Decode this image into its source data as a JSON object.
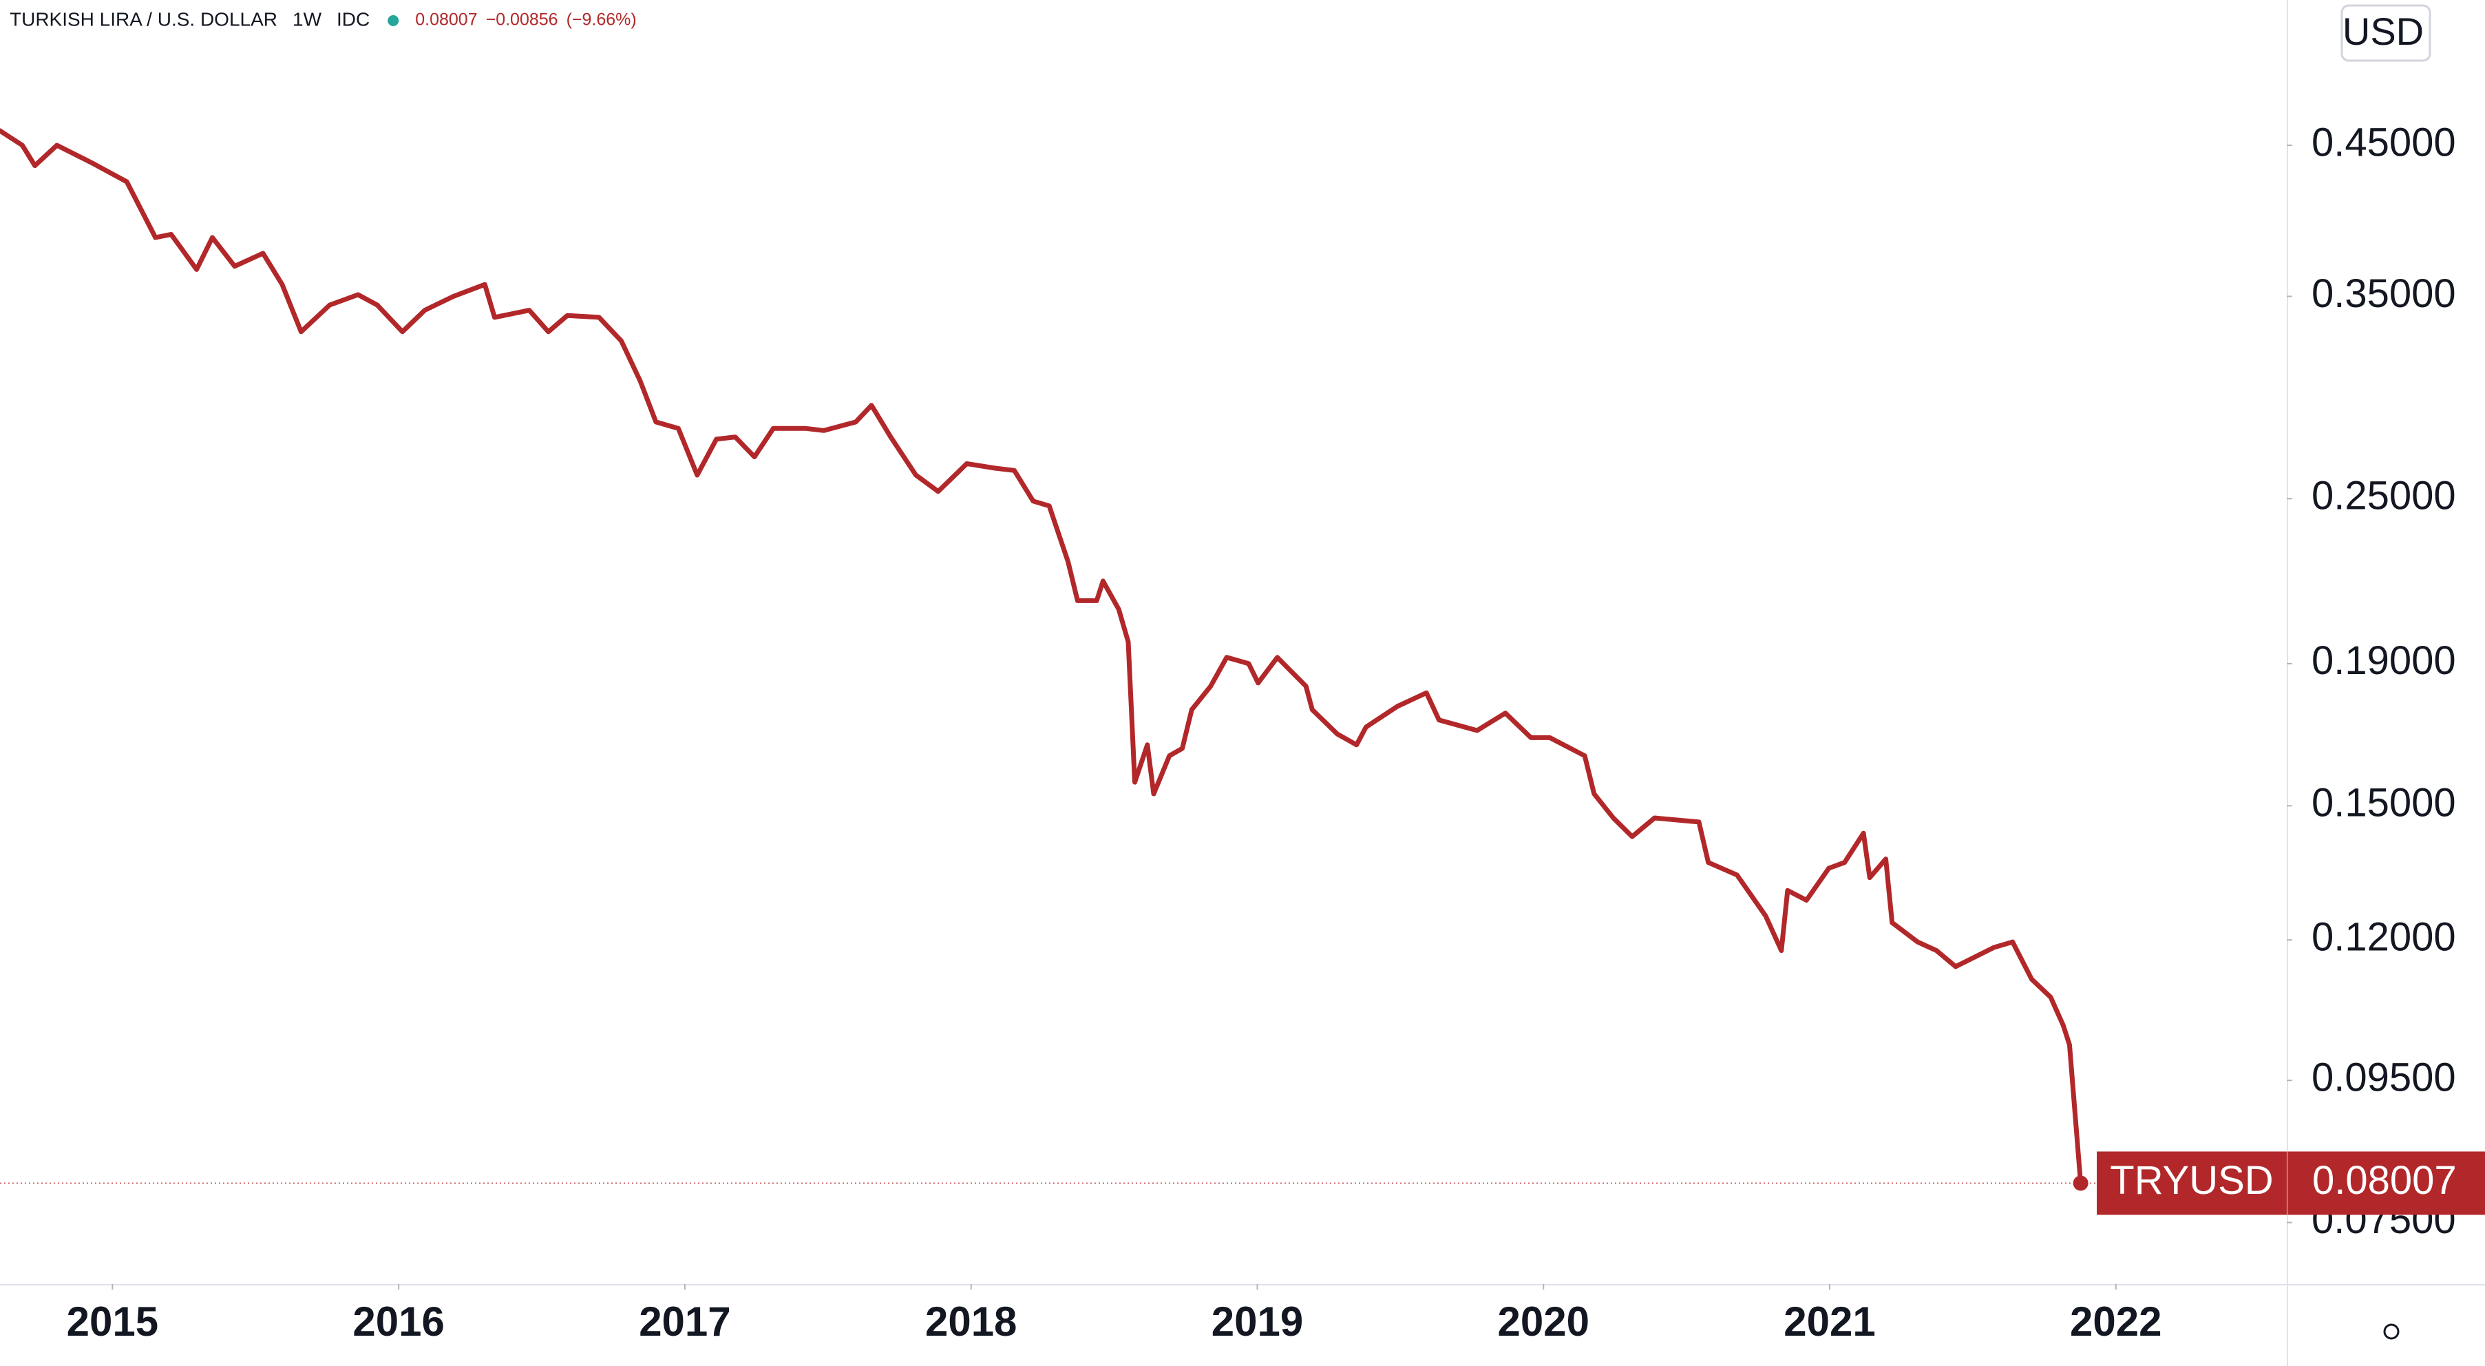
{
  "chart_data": {
    "type": "line",
    "title": "TURKISH LIRA / U.S. DOLLAR",
    "interval": "1W",
    "source": "IDC",
    "change": "−0.00856",
    "change_percent": "(−9.66%)",
    "currency": "USD",
    "log_scale": true,
    "series": [
      {
        "name": "TRYUSD",
        "color": "#b2282a",
        "x": [
          2014.607,
          2014.685,
          2014.729,
          2014.806,
          2014.928,
          2015.05,
          2015.15,
          2015.205,
          2015.294,
          2015.349,
          2015.427,
          2015.526,
          2015.593,
          2015.659,
          2015.759,
          2015.858,
          2015.925,
          2016.013,
          2016.091,
          2016.191,
          2016.301,
          2016.335,
          2016.456,
          2016.523,
          2016.589,
          2016.7,
          2016.778,
          2016.844,
          2016.899,
          2016.977,
          2017.043,
          2017.11,
          2017.176,
          2017.243,
          2017.309,
          2017.42,
          2017.486,
          2017.597,
          2017.652,
          2017.719,
          2017.807,
          2017.885,
          2017.985,
          2018.084,
          2018.151,
          2018.217,
          2018.273,
          2018.339,
          2018.372,
          2018.439,
          2018.461,
          2018.516,
          2018.549,
          2018.572,
          2018.616,
          2018.638,
          2018.693,
          2018.738,
          2018.771,
          2018.837,
          2018.893,
          2018.97,
          2019.003,
          2019.07,
          2019.17,
          2019.192,
          2019.28,
          2019.347,
          2019.38,
          2019.49,
          2019.591,
          2019.635,
          2019.768,
          2019.867,
          2019.956,
          2020.022,
          2020.144,
          2020.177,
          2020.244,
          2020.31,
          2020.388,
          2020.543,
          2020.576,
          2020.676,
          2020.776,
          2020.831,
          2020.853,
          2020.919,
          2020.997,
          2021.052,
          2021.118,
          2021.14,
          2021.196,
          2021.218,
          2021.307,
          2021.373,
          2021.44,
          2021.573,
          2021.639,
          2021.706,
          2021.772,
          2021.816,
          2021.838,
          2021.877
        ],
        "values": [
          0.461,
          0.45,
          0.435,
          0.45,
          0.437,
          0.4235,
          0.386,
          0.388,
          0.366,
          0.386,
          0.368,
          0.376,
          0.357,
          0.33,
          0.345,
          0.351,
          0.345,
          0.33,
          0.342,
          0.35,
          0.357,
          0.338,
          0.342,
          0.33,
          0.339,
          0.338,
          0.325,
          0.304,
          0.284,
          0.281,
          0.26,
          0.276,
          0.277,
          0.268,
          0.281,
          0.281,
          0.28,
          0.284,
          0.292,
          0.277,
          0.26,
          0.253,
          0.265,
          0.263,
          0.262,
          0.249,
          0.247,
          0.225,
          0.211,
          0.211,
          0.218,
          0.208,
          0.197,
          0.156,
          0.166,
          0.153,
          0.163,
          0.165,
          0.176,
          0.183,
          0.192,
          0.19,
          0.184,
          0.192,
          0.183,
          0.176,
          0.169,
          0.166,
          0.171,
          0.177,
          0.181,
          0.173,
          0.17,
          0.175,
          0.168,
          0.168,
          0.163,
          0.153,
          0.147,
          0.1425,
          0.147,
          0.146,
          0.1365,
          0.1337,
          0.1249,
          0.1179,
          0.1303,
          0.1282,
          0.1352,
          0.1365,
          0.1433,
          0.1331,
          0.1373,
          0.1235,
          0.1196,
          0.1179,
          0.1148,
          0.1185,
          0.1196,
          0.1124,
          0.1091,
          0.1041,
          0.1008,
          0.08007
        ]
      }
    ],
    "xlim": [
      2014.607,
      2022.597
    ],
    "xticks": [
      2015,
      2016,
      2017,
      2018,
      2019,
      2020,
      2021,
      2022
    ],
    "ylim": [
      0.0677,
      0.573
    ],
    "yticks": [
      {
        "value": 0.075,
        "label": "0.07500"
      },
      {
        "value": 0.095,
        "label": "0.09500"
      },
      {
        "value": 0.12,
        "label": "0.12000"
      },
      {
        "value": 0.15,
        "label": "0.15000"
      },
      {
        "value": 0.19,
        "label": "0.19000"
      },
      {
        "value": 0.25,
        "label": "0.25000"
      },
      {
        "value": 0.35,
        "label": "0.35000"
      },
      {
        "value": 0.45,
        "label": "0.45000"
      }
    ],
    "grid": false
  }
}
